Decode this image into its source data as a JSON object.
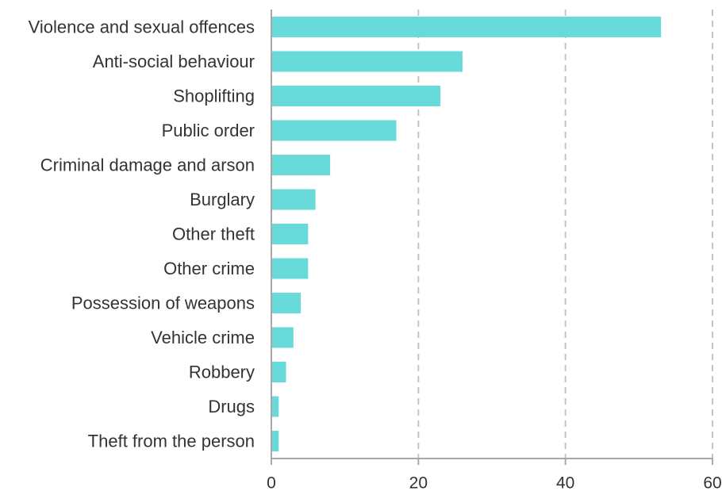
{
  "chart_data": {
    "type": "bar",
    "orientation": "horizontal",
    "categories": [
      "Violence and sexual offences",
      "Anti-social behaviour",
      "Shoplifting",
      "Public order",
      "Criminal damage and arson",
      "Burglary",
      "Other theft",
      "Other crime",
      "Possession of weapons",
      "Vehicle crime",
      "Robbery",
      "Drugs",
      "Theft from the person"
    ],
    "values": [
      53,
      26,
      23,
      17,
      8,
      6,
      5,
      5,
      4,
      3,
      2,
      1,
      1
    ],
    "xlim": [
      0,
      60
    ],
    "xticks": [
      0,
      20,
      40,
      60
    ],
    "grid": "vertical dashed",
    "bar_color": "#69dada",
    "title": "",
    "xlabel": "",
    "ylabel": ""
  }
}
